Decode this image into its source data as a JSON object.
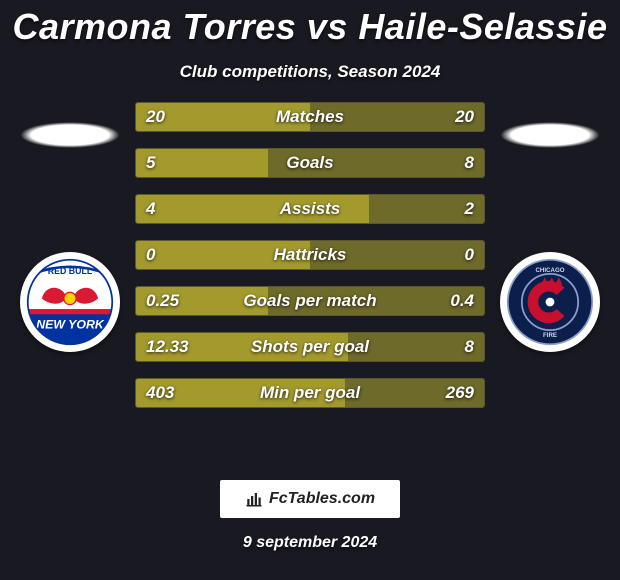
{
  "title": "Carmona Torres vs Haile-Selassie",
  "subtitle": "Club competitions, Season 2024",
  "date": "9 september 2024",
  "brand": "FcTables.com",
  "colors": {
    "background": "#191922",
    "bar_left": "#a39a2e",
    "bar_right": "#6e6a2a",
    "bar_border": "#5b5830",
    "text": "#ffffff"
  },
  "badge_left": {
    "name": "red-bull-new-york",
    "primary": "#d91a32",
    "accent": "#ffd200",
    "secondary": "#0033a0"
  },
  "badge_right": {
    "name": "chicago-fire",
    "primary": "#0b1f4d",
    "accent": "#c8102e"
  },
  "rows": [
    {
      "label": "Matches",
      "left": "20",
      "right": "20",
      "lw": 50,
      "rw": 50
    },
    {
      "label": "Goals",
      "left": "5",
      "right": "8",
      "lw": 38,
      "rw": 62
    },
    {
      "label": "Assists",
      "left": "4",
      "right": "2",
      "lw": 67,
      "rw": 33
    },
    {
      "label": "Hattricks",
      "left": "0",
      "right": "0",
      "lw": 50,
      "rw": 50
    },
    {
      "label": "Goals per match",
      "left": "0.25",
      "right": "0.4",
      "lw": 38,
      "rw": 62
    },
    {
      "label": "Shots per goal",
      "left": "12.33",
      "right": "8",
      "lw": 61,
      "rw": 39
    },
    {
      "label": "Min per goal",
      "left": "403",
      "right": "269",
      "lw": 60,
      "rw": 40
    }
  ]
}
